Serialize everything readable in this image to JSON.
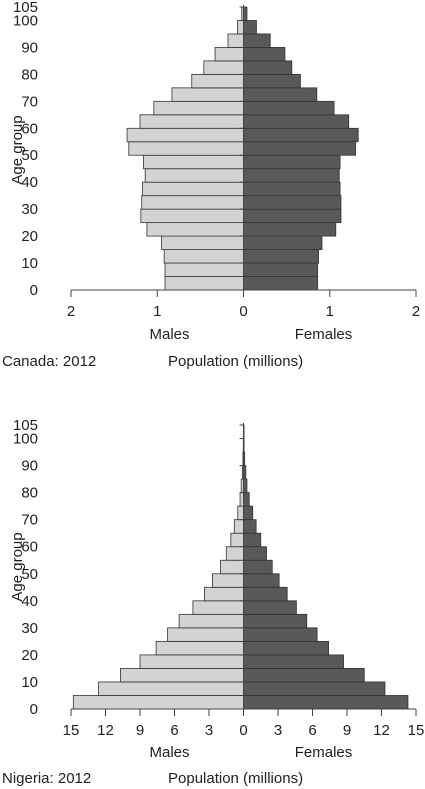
{
  "colors": {
    "males": "#d3d3d3",
    "females": "#595959",
    "stroke": "#333333",
    "axis": "#444444"
  },
  "chart_data": [
    {
      "type": "bar",
      "subtype": "population-pyramid",
      "caption": "Canada: 2012",
      "xlabel": "Population (millions)",
      "ylabel": "Age group",
      "left_label": "Males",
      "right_label": "Females",
      "xlim": [
        -2,
        2
      ],
      "x_ticks": [
        {
          "v": -2,
          "t": "2"
        },
        {
          "v": -1,
          "t": "1"
        },
        {
          "v": 0,
          "t": "0"
        },
        {
          "v": 1,
          "t": "1"
        },
        {
          "v": 2,
          "t": "2"
        }
      ],
      "y_ticks": [
        "0",
        "10",
        "20",
        "30",
        "40",
        "50",
        "60",
        "70",
        "80",
        "90",
        "100",
        "105"
      ],
      "y_tick_values": [
        0,
        10,
        20,
        30,
        40,
        50,
        60,
        70,
        80,
        90,
        100,
        105
      ],
      "age_groups": [
        "0-4",
        "5-9",
        "10-14",
        "15-19",
        "20-24",
        "25-29",
        "30-34",
        "35-39",
        "40-44",
        "45-49",
        "50-54",
        "55-59",
        "60-64",
        "65-69",
        "70-74",
        "75-79",
        "80-84",
        "85-89",
        "90-94",
        "95-99",
        "100+"
      ],
      "series": [
        {
          "name": "Males",
          "values": [
            0.91,
            0.91,
            0.92,
            0.95,
            1.12,
            1.19,
            1.18,
            1.17,
            1.14,
            1.16,
            1.33,
            1.35,
            1.2,
            1.04,
            0.83,
            0.6,
            0.46,
            0.33,
            0.18,
            0.07,
            0.02
          ]
        },
        {
          "name": "Females",
          "values": [
            0.86,
            0.86,
            0.87,
            0.91,
            1.07,
            1.13,
            1.13,
            1.12,
            1.11,
            1.12,
            1.3,
            1.33,
            1.22,
            1.05,
            0.85,
            0.66,
            0.56,
            0.48,
            0.31,
            0.15,
            0.04
          ]
        }
      ]
    },
    {
      "type": "bar",
      "subtype": "population-pyramid",
      "caption": "Nigeria: 2012",
      "xlabel": "Population (millions)",
      "ylabel": "Age group",
      "left_label": "Males",
      "right_label": "Females",
      "xlim": [
        -15,
        15
      ],
      "x_ticks": [
        {
          "v": -15,
          "t": "15"
        },
        {
          "v": -12,
          "t": "12"
        },
        {
          "v": -9,
          "t": "9"
        },
        {
          "v": -6,
          "t": "6"
        },
        {
          "v": -3,
          "t": "3"
        },
        {
          "v": 0,
          "t": "0"
        },
        {
          "v": 3,
          "t": "3"
        },
        {
          "v": 6,
          "t": "6"
        },
        {
          "v": 9,
          "t": "9"
        },
        {
          "v": 12,
          "t": "12"
        },
        {
          "v": 15,
          "t": "15"
        }
      ],
      "y_ticks": [
        "0",
        "10",
        "20",
        "30",
        "40",
        "50",
        "60",
        "70",
        "80",
        "90",
        "100",
        "105"
      ],
      "y_tick_values": [
        0,
        10,
        20,
        30,
        40,
        50,
        60,
        70,
        80,
        90,
        100,
        105
      ],
      "age_groups": [
        "0-4",
        "5-9",
        "10-14",
        "15-19",
        "20-24",
        "25-29",
        "30-34",
        "35-39",
        "40-44",
        "45-49",
        "50-54",
        "55-59",
        "60-64",
        "65-69",
        "70-74",
        "75-79",
        "80-84",
        "85-89",
        "90-94",
        "95-99",
        "100+"
      ],
      "series": [
        {
          "name": "Males",
          "values": [
            14.8,
            12.6,
            10.7,
            9.0,
            7.6,
            6.6,
            5.6,
            4.4,
            3.4,
            2.7,
            2.0,
            1.5,
            1.1,
            0.8,
            0.5,
            0.3,
            0.2,
            0.1,
            0.05,
            0.02,
            0.01
          ]
        },
        {
          "name": "Females",
          "values": [
            14.3,
            12.3,
            10.5,
            8.7,
            7.4,
            6.4,
            5.5,
            4.6,
            3.8,
            3.1,
            2.5,
            2.0,
            1.5,
            1.1,
            0.8,
            0.5,
            0.3,
            0.2,
            0.1,
            0.05,
            0.02
          ]
        }
      ]
    }
  ]
}
